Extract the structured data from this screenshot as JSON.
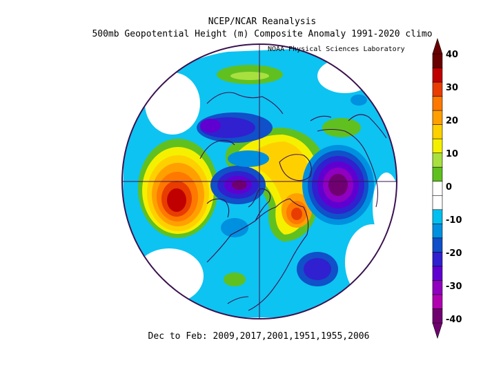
{
  "header": {
    "title": "NCEP/NCAR Reanalysis",
    "subtitle": "500mb Geopotential Height (m) Composite Anomaly 1991-2020 climo",
    "credit": "NOAA Physical Sciences Laboratory"
  },
  "footer": {
    "caption": "Dec to Feb: 2009,2017,2001,1951,1955,2006"
  },
  "colorbar": {
    "labels": [
      "40",
      "30",
      "20",
      "10",
      "0",
      "-10",
      "-20",
      "-30",
      "-40"
    ],
    "colors": [
      "#6a0000",
      "#c00000",
      "#e83c00",
      "#ff7800",
      "#ffa000",
      "#ffd000",
      "#f5f000",
      "#a8e040",
      "#60c020",
      "#ffffff",
      "#ffffff",
      "#00c0f0",
      "#0090e0",
      "#1050c8",
      "#3020d0",
      "#6000d0",
      "#9000c0",
      "#b000b0",
      "#700070"
    ],
    "units": "m"
  },
  "map": {
    "projection": "north-polar-stereographic",
    "colors": {
      "ocean_fill": "#ffffff",
      "outline": "#3a1050",
      "coastline": "#3a1050"
    }
  }
}
